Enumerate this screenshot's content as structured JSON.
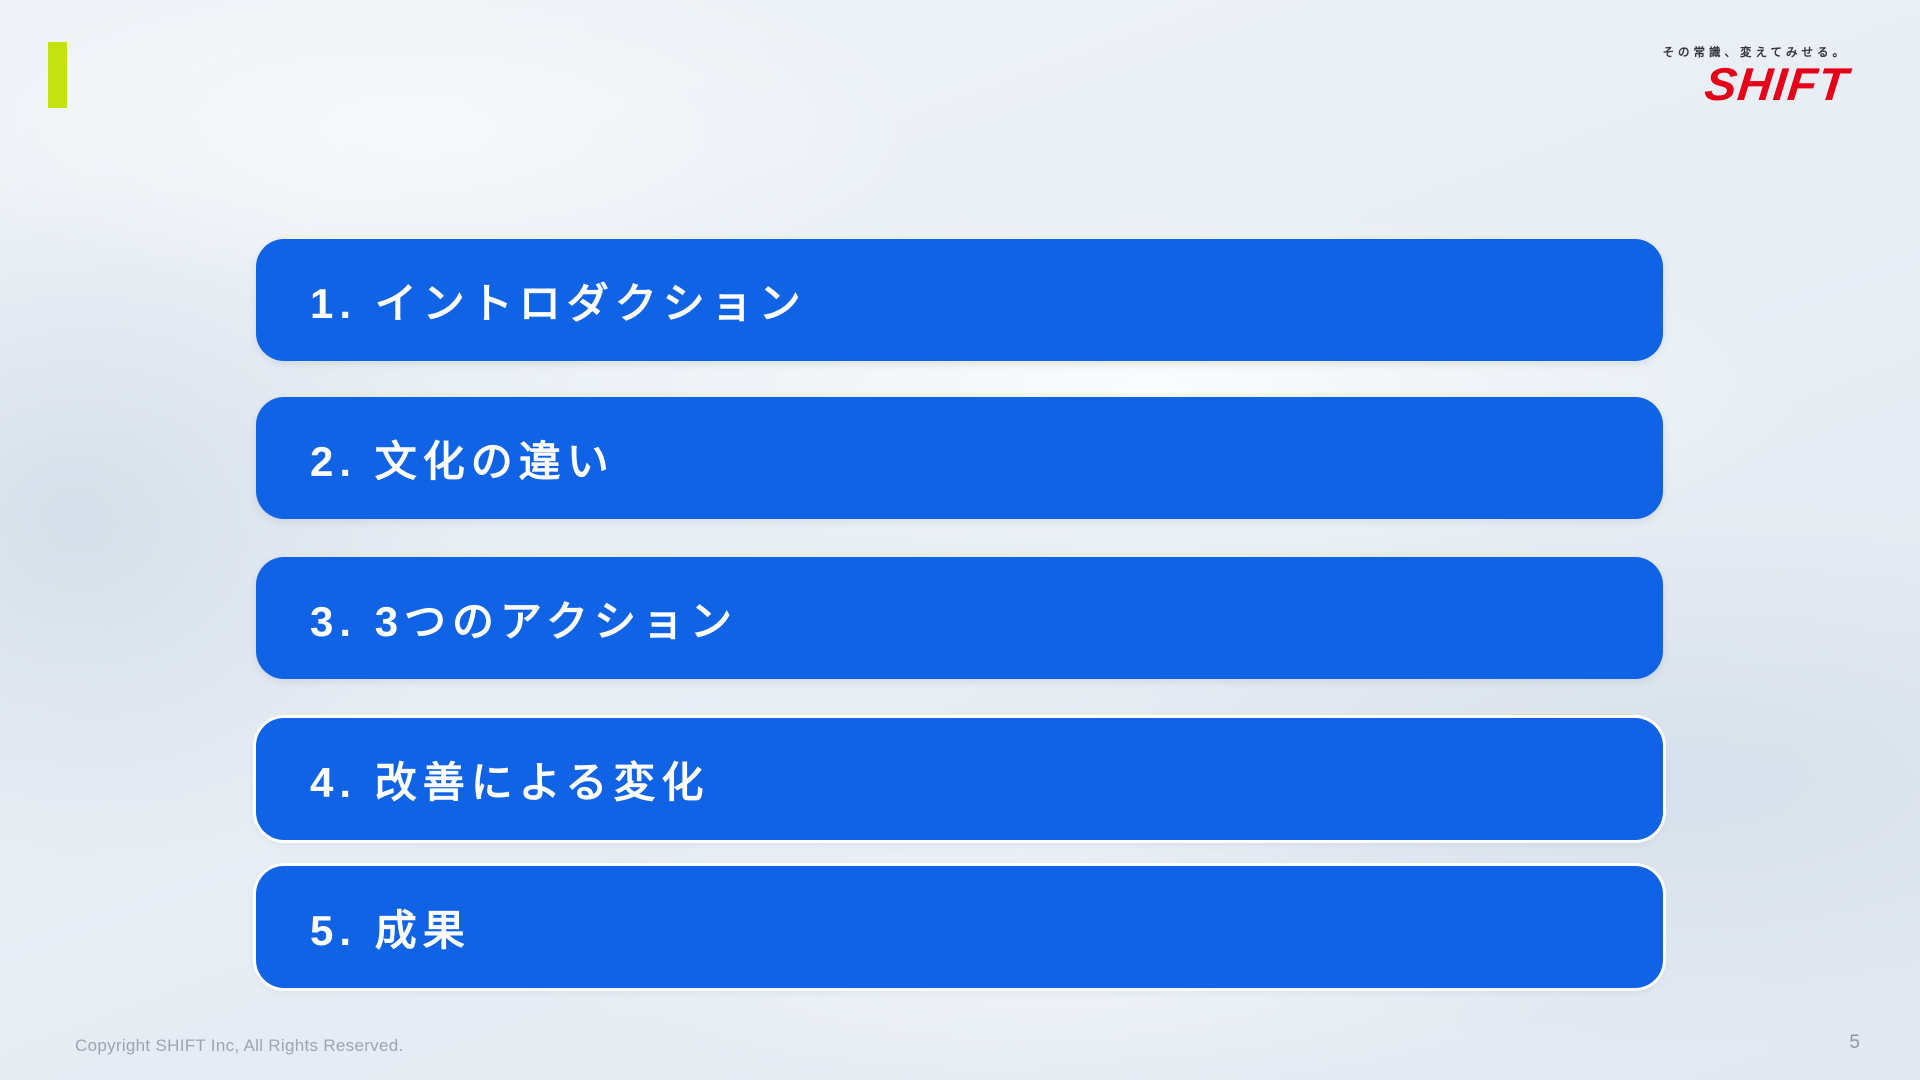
{
  "logo": {
    "tagline": "その常識、変えてみせる。",
    "brand": "SHIFT"
  },
  "agenda": [
    {
      "label": "1. イントロダクション"
    },
    {
      "label": "2. 文化の違い"
    },
    {
      "label": "3. 3つのアクション"
    },
    {
      "label": "4. 改善による変化"
    },
    {
      "label": "5. 成果"
    }
  ],
  "footer": {
    "copyright": "Copyright SHIFT Inc, All Rights Reserved.",
    "page_number": "5"
  },
  "colors": {
    "bar_blue": "#1163E6",
    "accent_yellow_green": "#C4E211",
    "brand_red": "#E40019",
    "background_light": "#EAF0F6"
  }
}
